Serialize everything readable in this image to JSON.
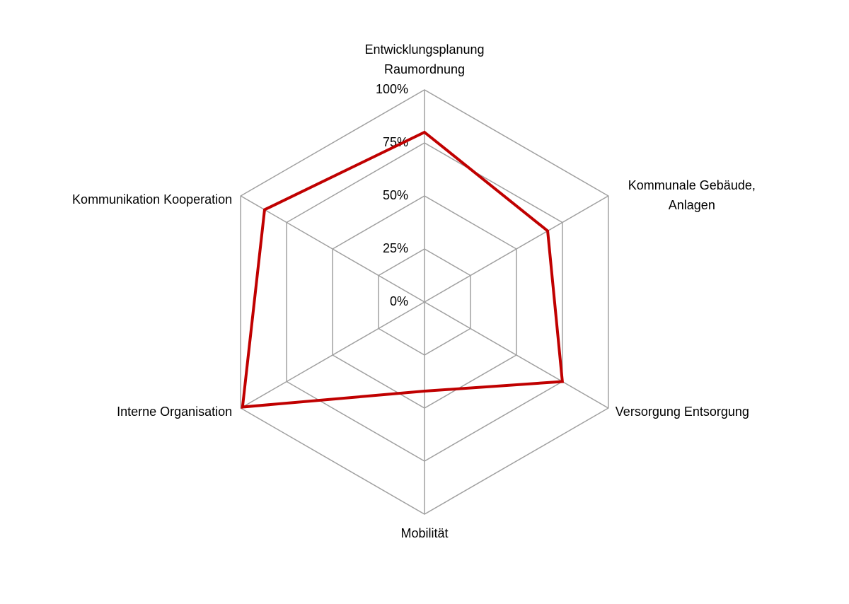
{
  "chart_data": {
    "type": "radar",
    "categories": [
      [
        "Entwicklungsplanung",
        "Raumordnung"
      ],
      [
        "Kommunale Gebäude,",
        "Anlagen"
      ],
      [
        "Versorgung Entsorgung"
      ],
      [
        "Mobilität"
      ],
      [
        "Interne Organisation"
      ],
      [
        "Kommunikation Kooperation"
      ]
    ],
    "rlim": [
      0,
      100
    ],
    "rticks": [
      {
        "value": 0,
        "label": "0%"
      },
      {
        "value": 25,
        "label": "25%"
      },
      {
        "value": 50,
        "label": "50%"
      },
      {
        "value": 75,
        "label": "75%"
      },
      {
        "value": 100,
        "label": "100%"
      }
    ],
    "series": [
      {
        "color": "#c00000",
        "values": [
          80,
          67,
          75,
          42,
          99,
          87
        ]
      }
    ],
    "grid": true,
    "grid_color": "#a0a0a0"
  }
}
